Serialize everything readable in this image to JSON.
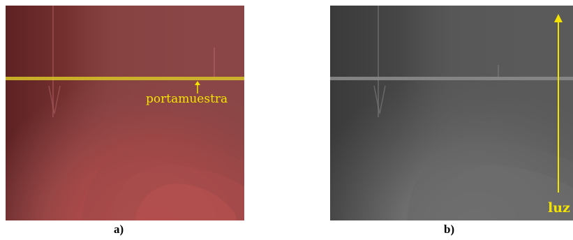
{
  "figure": {
    "panel_a": {
      "caption": "a)",
      "annotation": "portamuestra",
      "colors": {
        "base": "#8a4646",
        "left_dark": "#6e2a2c",
        "hot_core": "#c55050",
        "line": "#d8c428",
        "label": "#f4e400"
      }
    },
    "panel_b": {
      "caption": "b)",
      "annotation": "luz",
      "colors": {
        "base": "#5a5a5a",
        "left_dark": "#404040",
        "hot_core": "#7a7a7a",
        "line": "#8a8a8a",
        "arrow": "#f4e400",
        "label": "#f4e400"
      }
    }
  }
}
